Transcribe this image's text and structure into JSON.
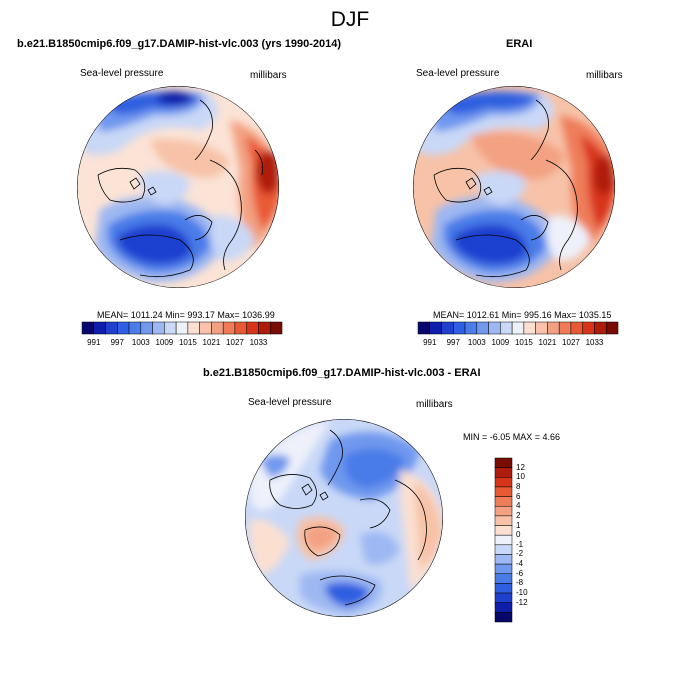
{
  "figure": {
    "title": "DJF",
    "panels": [
      {
        "title": "b.e21.B1850cmip6.f09_g17.DAMIP-hist-vlc.003 (yrs 1990-2014)",
        "left_label": "Sea-level pressure",
        "right_label": "millibars",
        "stats": "MEAN= 1011.24  Min= 993.17  Max= 1036.99"
      },
      {
        "title": "ERAI",
        "left_label": "Sea-level pressure",
        "right_label": "millibars",
        "stats": "MEAN= 1012.61  Min= 995.16  Max= 1035.15"
      },
      {
        "title": "b.e21.B1850cmip6.f09_g17.DAMIP-hist-vlc.003 - ERAI",
        "left_label": "Sea-level pressure",
        "right_label": "millibars",
        "stats": "MIN =  -6.05 MAX =    4.66"
      }
    ],
    "colorbar_abs": {
      "tick_labels": [
        "991",
        "997",
        "1003",
        "1009",
        "1015",
        "1021",
        "1027",
        "1033"
      ],
      "colors": [
        "#08086b",
        "#0d1fa8",
        "#1f3fcf",
        "#2f5fe0",
        "#4a7be8",
        "#6f98ee",
        "#9db8f2",
        "#c9d8f7",
        "#eef1fa",
        "#fbe0d2",
        "#f7c2a8",
        "#f3a182",
        "#ef7d5a",
        "#e95a34",
        "#d8341a",
        "#b01c0c",
        "#7a0c06"
      ]
    },
    "colorbar_diff": {
      "tick_labels": [
        "12",
        "10",
        "8",
        "6",
        "4",
        "2",
        "1",
        "0",
        "-1",
        "-2",
        "-4",
        "-6",
        "-8",
        "-10",
        "-12"
      ],
      "colors": [
        "#7a0c06",
        "#b01c0c",
        "#d8341a",
        "#e95a34",
        "#ef7d5a",
        "#f3a182",
        "#f7c2a8",
        "#fbe0d2",
        "#eef1fa",
        "#c9d8f7",
        "#9db8f2",
        "#6f98ee",
        "#4a7be8",
        "#2f5fe0",
        "#1f3fcf",
        "#0d1fa8",
        "#08086b"
      ]
    }
  }
}
